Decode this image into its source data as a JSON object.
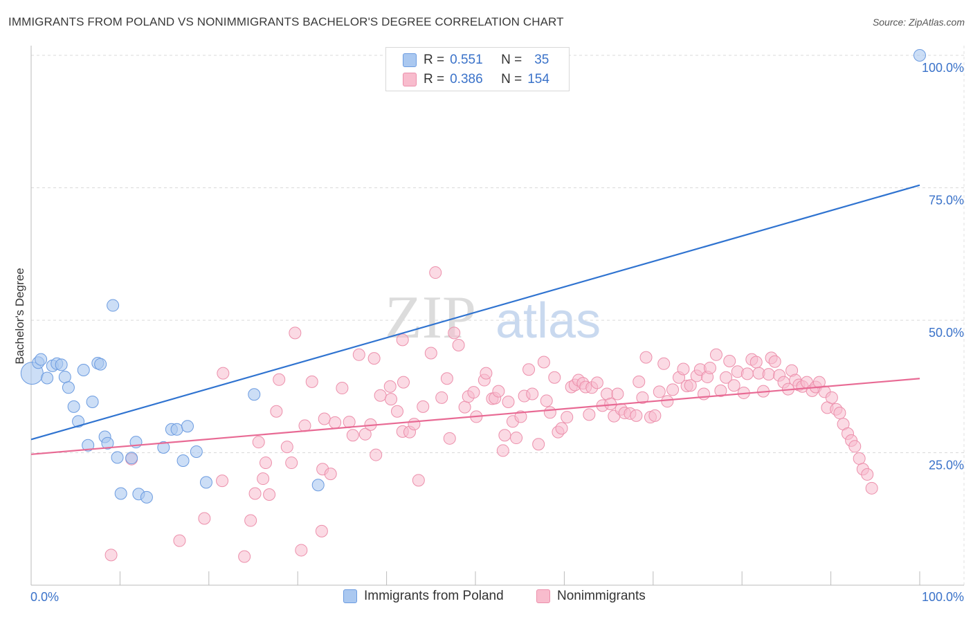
{
  "title": "IMMIGRANTS FROM POLAND VS NONIMMIGRANTS BACHELOR'S DEGREE CORRELATION CHART",
  "source": "Source: ZipAtlas.com",
  "watermark": {
    "zip": "ZIP",
    "atlas": "atlas"
  },
  "legend": {
    "r_label": "R =",
    "n_label": "N =",
    "series": [
      {
        "name": "Immigrants from Poland",
        "r": "0.551",
        "n": "35",
        "fill": "#aac8f0",
        "stroke": "#6b9be0"
      },
      {
        "name": "Nonimmigrants",
        "r": "0.386",
        "n": "154",
        "fill": "#f8bccd",
        "stroke": "#ec8fab"
      }
    ]
  },
  "chart_data": {
    "type": "scatter",
    "title": "IMMIGRANTS FROM POLAND VS NONIMMIGRANTS BACHELOR'S DEGREE CORRELATION CHART",
    "xlabel": "",
    "ylabel": "Bachelor's Degree",
    "xlim": [
      0,
      100
    ],
    "ylim": [
      0,
      100
    ],
    "x_tick_labels": [
      "0.0%",
      "100.0%"
    ],
    "y_tick_labels": [
      "100.0%",
      "75.0%",
      "50.0%",
      "25.0%"
    ],
    "y_tick_values": [
      100,
      75,
      50,
      25
    ],
    "grid": true,
    "series": [
      {
        "name": "Immigrants from Poland",
        "color": "#6b9be0",
        "fill": "#aac8f0",
        "line_color": "#2f73d0",
        "trend": {
          "x": [
            0,
            100
          ],
          "y": [
            27.5,
            75.5
          ]
        },
        "points": [
          [
            0.1,
            40.0
          ],
          [
            0.8,
            42.0
          ],
          [
            1.1,
            42.6
          ],
          [
            1.8,
            39.1
          ],
          [
            2.4,
            41.4
          ],
          [
            2.9,
            41.8
          ],
          [
            3.4,
            41.6
          ],
          [
            3.8,
            39.3
          ],
          [
            4.2,
            37.3
          ],
          [
            4.8,
            33.7
          ],
          [
            5.3,
            30.9
          ],
          [
            5.9,
            40.6
          ],
          [
            6.4,
            26.4
          ],
          [
            6.9,
            34.6
          ],
          [
            7.5,
            41.9
          ],
          [
            7.8,
            41.7
          ],
          [
            8.3,
            28.0
          ],
          [
            8.6,
            26.8
          ],
          [
            9.2,
            52.8
          ],
          [
            9.7,
            24.1
          ],
          [
            10.1,
            17.3
          ],
          [
            11.3,
            24.0
          ],
          [
            11.8,
            27.0
          ],
          [
            12.1,
            17.2
          ],
          [
            13.0,
            16.6
          ],
          [
            14.9,
            26.0
          ],
          [
            15.8,
            29.4
          ],
          [
            16.4,
            29.4
          ],
          [
            17.1,
            23.5
          ],
          [
            17.6,
            30.0
          ],
          [
            18.6,
            25.2
          ],
          [
            19.7,
            19.4
          ],
          [
            25.1,
            36.0
          ],
          [
            32.3,
            18.9
          ],
          [
            100.0,
            100.0
          ]
        ],
        "big_point": [
          0.1,
          40.0
        ]
      },
      {
        "name": "Nonimmigrants",
        "color": "#ec8fab",
        "fill": "#f8bccd",
        "line_color": "#e86a94",
        "trend": {
          "x": [
            0,
            100
          ],
          "y": [
            24.7,
            39.0
          ]
        },
        "points": [
          [
            9.0,
            5.7
          ],
          [
            11.3,
            23.8
          ],
          [
            16.7,
            8.4
          ],
          [
            19.5,
            12.6
          ],
          [
            21.5,
            19.7
          ],
          [
            21.6,
            40.0
          ],
          [
            24.0,
            5.4
          ],
          [
            24.7,
            12.2
          ],
          [
            25.2,
            17.3
          ],
          [
            25.6,
            27.0
          ],
          [
            26.1,
            20.1
          ],
          [
            26.4,
            23.1
          ],
          [
            26.8,
            17.1
          ],
          [
            27.6,
            32.8
          ],
          [
            27.9,
            38.8
          ],
          [
            28.8,
            26.1
          ],
          [
            29.3,
            23.1
          ],
          [
            29.7,
            47.6
          ],
          [
            30.4,
            6.6
          ],
          [
            30.8,
            30.1
          ],
          [
            31.6,
            38.4
          ],
          [
            32.7,
            10.2
          ],
          [
            32.8,
            21.9
          ],
          [
            33.0,
            31.4
          ],
          [
            33.7,
            21.0
          ],
          [
            34.2,
            30.7
          ],
          [
            35.0,
            37.2
          ],
          [
            35.8,
            30.8
          ],
          [
            36.2,
            28.3
          ],
          [
            36.9,
            43.5
          ],
          [
            37.6,
            28.5
          ],
          [
            38.2,
            30.3
          ],
          [
            38.6,
            42.8
          ],
          [
            38.8,
            24.6
          ],
          [
            39.3,
            35.8
          ],
          [
            40.4,
            37.5
          ],
          [
            40.5,
            35.1
          ],
          [
            41.2,
            32.8
          ],
          [
            41.8,
            46.3
          ],
          [
            41.9,
            38.3
          ],
          [
            41.8,
            29.0
          ],
          [
            42.6,
            28.9
          ],
          [
            43.1,
            30.4
          ],
          [
            43.6,
            19.8
          ],
          [
            44.1,
            33.7
          ],
          [
            45.0,
            43.8
          ],
          [
            45.5,
            59.0
          ],
          [
            46.2,
            35.4
          ],
          [
            46.8,
            39.0
          ],
          [
            47.1,
            27.7
          ],
          [
            47.6,
            47.6
          ],
          [
            48.1,
            45.3
          ],
          [
            48.8,
            33.6
          ],
          [
            49.2,
            35.6
          ],
          [
            49.8,
            36.4
          ],
          [
            50.1,
            31.8
          ],
          [
            51.0,
            38.7
          ],
          [
            51.2,
            40.0
          ],
          [
            51.9,
            35.2
          ],
          [
            52.2,
            35.3
          ],
          [
            52.6,
            36.6
          ],
          [
            53.1,
            25.4
          ],
          [
            53.3,
            28.3
          ],
          [
            53.7,
            34.6
          ],
          [
            54.2,
            30.9
          ],
          [
            54.6,
            27.8
          ],
          [
            55.1,
            31.8
          ],
          [
            55.5,
            35.7
          ],
          [
            56.0,
            40.7
          ],
          [
            56.4,
            36.1
          ],
          [
            57.1,
            26.6
          ],
          [
            57.7,
            42.1
          ],
          [
            58.0,
            34.8
          ],
          [
            58.4,
            32.6
          ],
          [
            58.9,
            39.2
          ],
          [
            59.3,
            28.9
          ],
          [
            59.7,
            29.6
          ],
          [
            60.3,
            31.7
          ],
          [
            60.8,
            37.4
          ],
          [
            61.2,
            37.8
          ],
          [
            61.6,
            38.7
          ],
          [
            62.1,
            38.1
          ],
          [
            62.4,
            37.4
          ],
          [
            62.8,
            32.2
          ],
          [
            63.1,
            37.3
          ],
          [
            63.7,
            38.2
          ],
          [
            64.3,
            33.9
          ],
          [
            64.8,
            36.1
          ],
          [
            65.2,
            34.2
          ],
          [
            65.6,
            31.9
          ],
          [
            66.0,
            36.1
          ],
          [
            66.4,
            33.2
          ],
          [
            66.8,
            32.5
          ],
          [
            67.4,
            32.4
          ],
          [
            68.1,
            32.0
          ],
          [
            68.4,
            38.4
          ],
          [
            68.8,
            35.4
          ],
          [
            69.2,
            43.0
          ],
          [
            69.7,
            31.7
          ],
          [
            70.2,
            32.0
          ],
          [
            70.7,
            36.5
          ],
          [
            71.2,
            41.8
          ],
          [
            71.6,
            34.7
          ],
          [
            72.2,
            36.9
          ],
          [
            72.9,
            39.2
          ],
          [
            73.4,
            40.8
          ],
          [
            73.8,
            37.6
          ],
          [
            74.2,
            37.7
          ],
          [
            74.9,
            39.5
          ],
          [
            75.3,
            40.7
          ],
          [
            75.7,
            36.1
          ],
          [
            76.1,
            39.3
          ],
          [
            76.4,
            41.0
          ],
          [
            77.1,
            43.5
          ],
          [
            77.6,
            36.7
          ],
          [
            78.2,
            39.2
          ],
          [
            78.6,
            42.3
          ],
          [
            79.1,
            37.7
          ],
          [
            79.5,
            40.3
          ],
          [
            80.2,
            36.3
          ],
          [
            80.6,
            39.9
          ],
          [
            81.1,
            42.6
          ],
          [
            81.6,
            42.1
          ],
          [
            81.9,
            40.0
          ],
          [
            82.4,
            36.6
          ],
          [
            83.0,
            39.8
          ],
          [
            83.3,
            42.9
          ],
          [
            83.7,
            42.2
          ],
          [
            84.2,
            39.6
          ],
          [
            84.7,
            38.3
          ],
          [
            85.2,
            37.0
          ],
          [
            85.6,
            40.5
          ],
          [
            86.0,
            38.7
          ],
          [
            86.4,
            37.8
          ],
          [
            86.8,
            37.5
          ],
          [
            87.3,
            38.3
          ],
          [
            87.9,
            36.7
          ],
          [
            88.3,
            37.4
          ],
          [
            88.7,
            38.3
          ],
          [
            89.3,
            36.5
          ],
          [
            89.6,
            33.5
          ],
          [
            90.1,
            35.4
          ],
          [
            90.6,
            33.2
          ],
          [
            91.0,
            32.5
          ],
          [
            91.4,
            30.4
          ],
          [
            91.9,
            28.6
          ],
          [
            92.3,
            27.3
          ],
          [
            92.7,
            26.2
          ],
          [
            93.2,
            23.9
          ],
          [
            93.6,
            21.9
          ],
          [
            94.1,
            20.9
          ],
          [
            94.6,
            18.3
          ]
        ]
      }
    ]
  }
}
